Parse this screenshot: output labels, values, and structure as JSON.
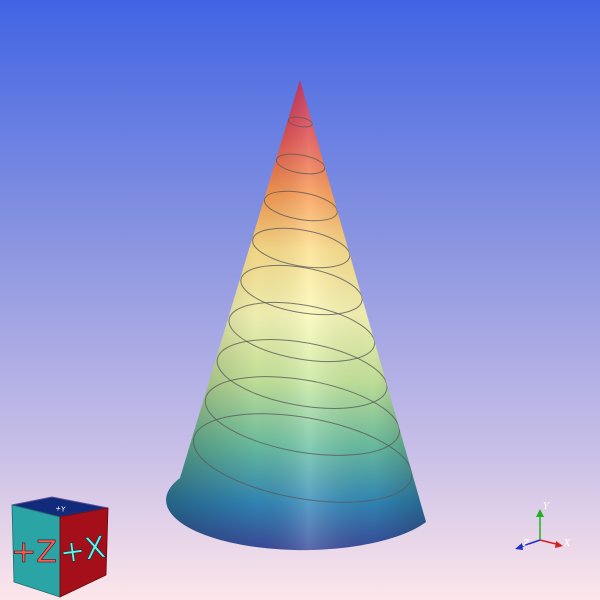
{
  "viewport": {
    "background_top": "#4164e4",
    "background_bottom": "#fde6ea"
  },
  "surface": {
    "type": "cone",
    "colormap": "spectral",
    "colormap_stops": [
      "#3b4a9c",
      "#3289bb",
      "#6bc2a4",
      "#c9e99e",
      "#fbfab8",
      "#fde08b",
      "#f8974f",
      "#de4a4c",
      "#b51a4c"
    ],
    "contour_levels": 9,
    "contour_color": "#5a5a5a"
  },
  "orientation_cube": {
    "front_face_label": "+Z",
    "right_face_label": "+X",
    "top_face_label": "+Y",
    "front_face_color": "#2aa4a4",
    "right_face_color": "#a40f19",
    "top_face_color": "#122a7a",
    "label_color_front": "#ff5a5a",
    "label_color_right": "#5ff4ee"
  },
  "axes_triad": {
    "x_label": "X",
    "y_label": "Y",
    "z_label": "Z",
    "x_color": "#d22020",
    "y_color": "#22b022",
    "z_color": "#2030c8"
  }
}
